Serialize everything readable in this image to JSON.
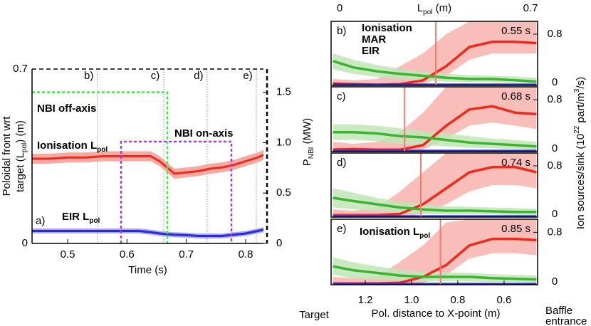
{
  "chart_data": [
    {
      "type": "line",
      "ylabel": [
        [
          "Poloidal front wrt"
        ],
        [
          "target (L",
          {
            "sub": "pol"
          },
          ") (m)"
        ]
      ],
      "y2label": [
        "P",
        {
          "sub": "NBI"
        },
        " (MW)"
      ],
      "xlabel": [
        "Time (s)"
      ],
      "xlim": [
        0.44,
        0.83
      ],
      "xticks": [
        0.5,
        0.6,
        0.7,
        0.8
      ],
      "ylim": [
        0,
        0.7
      ],
      "yticks": [
        0,
        0.7
      ],
      "y2lim": [
        0,
        1.73
      ],
      "y2ticks": [
        0,
        0.5,
        {
          "value": 1,
          "label": "1.0"
        },
        1.5
      ],
      "markers": [
        {
          "label": "b)",
          "x": 0.55
        },
        {
          "label": "c)",
          "x": 0.662
        },
        {
          "label": "d)",
          "x": 0.735
        },
        {
          "label": "e)",
          "x": 0.818
        }
      ],
      "annotations": [
        {
          "text": [
            "NBI off-axis"
          ],
          "color": "#33ee33"
        },
        {
          "text": [
            "NBI on-axis"
          ],
          "color": "#a23be2"
        },
        {
          "text": [
            "Ionisation L",
            {
              "sub": "pol"
            }
          ],
          "color": "#ee2a1b"
        },
        {
          "text": [
            "EIR L",
            {
              "sub": "pol"
            }
          ],
          "color": "#2a2ad8"
        },
        {
          "text": [
            "a)"
          ],
          "color": "#000000"
        }
      ],
      "series": [
        {
          "name": "Ionisation",
          "color": "#ee2a1b",
          "band_color": "#f6a9a2",
          "x": [
            0.44,
            0.47,
            0.5,
            0.53,
            0.56,
            0.59,
            0.62,
            0.64,
            0.655,
            0.67,
            0.68,
            0.7,
            0.72,
            0.74,
            0.76,
            0.78,
            0.8,
            0.82,
            0.83
          ],
          "values": [
            0.34,
            0.34,
            0.345,
            0.345,
            0.35,
            0.35,
            0.35,
            0.35,
            0.33,
            0.3,
            0.28,
            0.285,
            0.29,
            0.3,
            0.305,
            0.315,
            0.33,
            0.345,
            0.355
          ],
          "lower": [
            0.32,
            0.32,
            0.325,
            0.325,
            0.33,
            0.33,
            0.33,
            0.33,
            0.31,
            0.28,
            0.26,
            0.265,
            0.27,
            0.28,
            0.285,
            0.295,
            0.31,
            0.325,
            0.335
          ],
          "upper": [
            0.36,
            0.36,
            0.365,
            0.365,
            0.37,
            0.37,
            0.37,
            0.37,
            0.35,
            0.32,
            0.3,
            0.305,
            0.31,
            0.32,
            0.325,
            0.335,
            0.35,
            0.365,
            0.375
          ]
        },
        {
          "name": "EIR",
          "color": "#2a2ad8",
          "band_color": "#a9a9f0",
          "x": [
            0.44,
            0.47,
            0.5,
            0.53,
            0.56,
            0.59,
            0.62,
            0.64,
            0.655,
            0.67,
            0.68,
            0.7,
            0.72,
            0.74,
            0.76,
            0.78,
            0.8,
            0.82,
            0.83
          ],
          "values": [
            0.05,
            0.05,
            0.05,
            0.05,
            0.05,
            0.05,
            0.05,
            0.045,
            0.04,
            0.037,
            0.035,
            0.033,
            0.03,
            0.03,
            0.03,
            0.035,
            0.04,
            0.05,
            0.055
          ],
          "lower": [
            0.04,
            0.04,
            0.04,
            0.04,
            0.04,
            0.04,
            0.04,
            0.035,
            0.03,
            0.027,
            0.025,
            0.023,
            0.02,
            0.02,
            0.02,
            0.025,
            0.03,
            0.04,
            0.045
          ],
          "upper": [
            0.06,
            0.06,
            0.06,
            0.06,
            0.06,
            0.06,
            0.06,
            0.055,
            0.05,
            0.047,
            0.045,
            0.043,
            0.04,
            0.04,
            0.04,
            0.045,
            0.05,
            0.06,
            0.065
          ]
        },
        {
          "name": "NBI off-axis",
          "color": "#33ee33",
          "axis": "y2",
          "x": [
            0.44,
            0.668,
            0.668
          ],
          "values": [
            1.5,
            1.5,
            0
          ]
        },
        {
          "name": "NBI on-axis",
          "color": "#a23be2",
          "axis": "y2",
          "x": [
            0.59,
            0.59,
            0.776,
            0.776
          ],
          "values": [
            0,
            1.01,
            1.01,
            0
          ]
        }
      ]
    },
    {
      "type": "line",
      "x2label": [
        "L",
        {
          "sub": "pol"
        },
        " (m)"
      ],
      "x2lim": [
        0,
        0.7
      ],
      "x2ticks": [
        0,
        0.7
      ],
      "xlabel": [
        "Pol. distance to X-point (m)"
      ],
      "xlim": [
        1.348,
        0.455
      ],
      "xticks": [
        1.2,
        {
          "value": 1,
          "label": "1.0"
        },
        0.8,
        0.6
      ],
      "ylabel": [
        "Ion sources/sink (10",
        {
          "sup": "22"
        },
        " part/m",
        {
          "sup": "3"
        },
        "/s)"
      ],
      "left_note": "Target",
      "right_note": [
        "Baffle",
        "entrance"
      ],
      "ylim": [
        0,
        1.0
      ],
      "yticks": [
        0,
        0.8
      ],
      "legend": [
        {
          "name": "Ionisation",
          "color": "#ee2a1b"
        },
        {
          "name": "MAR",
          "color": "#3cb431"
        },
        {
          "name": "EIR",
          "color": "#2a2ad8"
        }
      ],
      "x": [
        1.34,
        1.25,
        1.15,
        1.05,
        0.95,
        0.85,
        0.75,
        0.65,
        0.55,
        0.46
      ],
      "front_color": "#f07a70",
      "panels": [
        {
          "label": "b)",
          "time": "0.55 s",
          "front": 0.895,
          "series": [
            {
              "color": "#ee2a1b",
              "band_color": "#f8b3ad",
              "values": [
                0.03,
                0.02,
                0.01,
                0.02,
                0.08,
                0.3,
                0.6,
                0.68,
                0.68,
                0.66
              ],
              "lower": [
                0,
                0,
                0,
                0,
                0.02,
                0.15,
                0.4,
                0.5,
                0.5,
                0.5
              ],
              "upper": [
                0.1,
                0.08,
                0.1,
                0.3,
                0.5,
                0.8,
                1,
                1,
                1,
                1
              ]
            },
            {
              "color": "#3cb431",
              "band_color": "#bfe6b6",
              "values": [
                0.38,
                0.28,
                0.22,
                0.18,
                0.15,
                0.12,
                0.1,
                0.1,
                0.08,
                0.06
              ],
              "lower": [
                0.25,
                0.18,
                0.13,
                0.1,
                0.08,
                0.06,
                0.05,
                0.05,
                0.04,
                0.03
              ],
              "upper": [
                0.5,
                0.4,
                0.32,
                0.26,
                0.22,
                0.18,
                0.16,
                0.15,
                0.14,
                0.12
              ]
            },
            {
              "color": "#2a2ad8",
              "values": [
                0.01,
                0.01,
                0.01,
                0.01,
                0.01,
                0.01,
                0.01,
                0.01,
                0.01,
                0.01
              ]
            }
          ]
        },
        {
          "label": "c)",
          "time": "0.68 s",
          "front": 1.03,
          "series": [
            {
              "color": "#ee2a1b",
              "band_color": "#f8b3ad",
              "values": [
                0.03,
                0.04,
                0.03,
                0.03,
                0.1,
                0.4,
                0.65,
                0.7,
                0.6,
                0.58
              ],
              "lower": [
                0,
                0,
                0,
                0,
                0.03,
                0.2,
                0.4,
                0.45,
                0.4,
                0.35
              ],
              "upper": [
                0.15,
                0.12,
                0.15,
                0.3,
                0.6,
                1,
                1,
                1,
                1,
                1
              ]
            },
            {
              "color": "#3cb431",
              "band_color": "#bfe6b6",
              "values": [
                0.3,
                0.3,
                0.28,
                0.24,
                0.22,
                0.18,
                0.14,
                0.12,
                0.1,
                0.08
              ],
              "lower": [
                0.18,
                0.18,
                0.16,
                0.12,
                0.1,
                0.08,
                0.06,
                0.05,
                0.04,
                0.03
              ],
              "upper": [
                0.42,
                0.42,
                0.4,
                0.36,
                0.32,
                0.28,
                0.24,
                0.2,
                0.18,
                0.15
              ]
            },
            {
              "color": "#2a2ad8",
              "values": [
                0.01,
                0.01,
                0.01,
                0.01,
                0.01,
                0.01,
                0.01,
                0.01,
                0.01,
                0.01
              ]
            }
          ]
        },
        {
          "label": "d)",
          "time": "0.74 s",
          "front": 0.96,
          "series": [
            {
              "color": "#ee2a1b",
              "band_color": "#f8b3ad",
              "values": [
                0.03,
                0.03,
                0.03,
                0.05,
                0.2,
                0.45,
                0.7,
                0.78,
                0.78,
                0.7
              ],
              "lower": [
                0,
                0,
                0,
                0,
                0.05,
                0.2,
                0.4,
                0.5,
                0.5,
                0.45
              ],
              "upper": [
                0.12,
                0.1,
                0.15,
                0.4,
                0.7,
                1,
                1,
                1,
                1,
                1
              ]
            },
            {
              "color": "#3cb431",
              "band_color": "#bfe6b6",
              "values": [
                0.3,
                0.25,
                0.2,
                0.15,
                0.12,
                0.1,
                0.1,
                0.09,
                0.08,
                0.08
              ],
              "lower": [
                0.15,
                0.12,
                0.1,
                0.07,
                0.05,
                0.04,
                0.04,
                0.04,
                0.03,
                0.03
              ],
              "upper": [
                0.45,
                0.38,
                0.3,
                0.24,
                0.2,
                0.17,
                0.16,
                0.15,
                0.14,
                0.13
              ]
            },
            {
              "color": "#2a2ad8",
              "values": [
                0.01,
                0.01,
                0.01,
                0.01,
                0.01,
                0.01,
                0.01,
                0.01,
                0.01,
                0.01
              ]
            }
          ]
        },
        {
          "label": "e)",
          "time": "0.85 s",
          "front": 0.875,
          "note": [
            "Ionisation L",
            {
              "sub": "pol"
            }
          ],
          "series": [
            {
              "color": "#ee2a1b",
              "band_color": "#f8b3ad",
              "values": [
                0.02,
                0.02,
                0.02,
                0.03,
                0.12,
                0.3,
                0.6,
                0.7,
                0.7,
                0.68
              ],
              "lower": [
                0,
                0,
                0,
                0,
                0.03,
                0.15,
                0.4,
                0.48,
                0.48,
                0.45
              ],
              "upper": [
                0.12,
                0.1,
                0.12,
                0.35,
                0.6,
                0.95,
                1,
                1,
                1,
                1
              ]
            },
            {
              "color": "#3cb431",
              "band_color": "#bfe6b6",
              "values": [
                0.28,
                0.22,
                0.18,
                0.14,
                0.12,
                0.12,
                0.12,
                0.1,
                0.09,
                0.08
              ],
              "lower": [
                0.15,
                0.1,
                0.08,
                0.06,
                0.05,
                0.05,
                0.05,
                0.04,
                0.04,
                0.03
              ],
              "upper": [
                0.42,
                0.34,
                0.28,
                0.23,
                0.2,
                0.19,
                0.18,
                0.16,
                0.15,
                0.14
              ]
            },
            {
              "color": "#2a2ad8",
              "values": [
                0.01,
                0.01,
                0.01,
                0.01,
                0.01,
                0.01,
                0.01,
                0.01,
                0.01,
                0.01
              ]
            }
          ]
        }
      ]
    }
  ]
}
